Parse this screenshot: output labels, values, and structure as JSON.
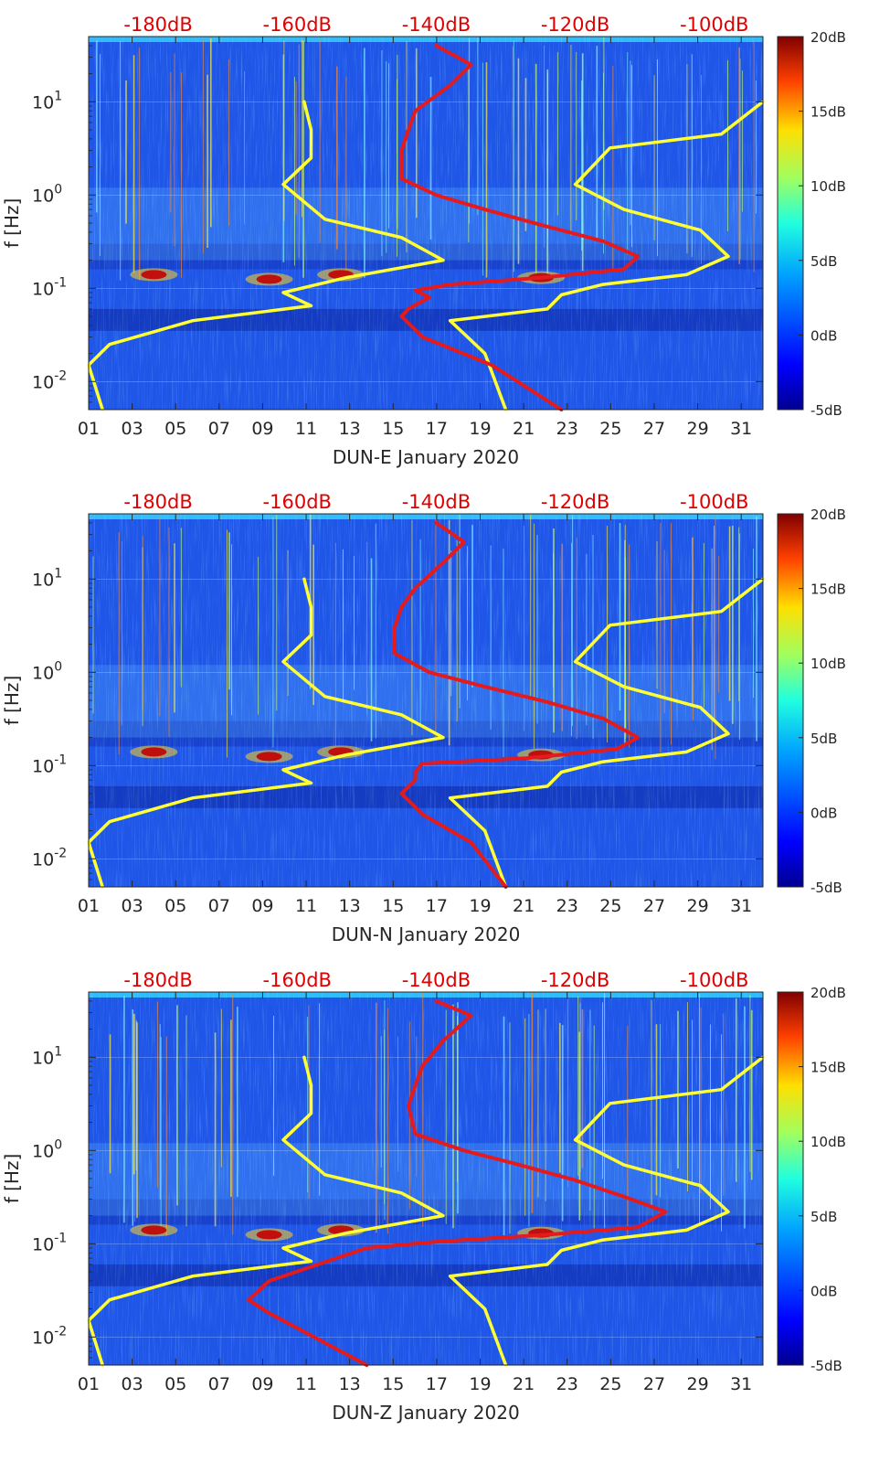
{
  "colors": {
    "background": "#1f56e8",
    "white_line": "#ffffff",
    "yellow_curve": "#ffff33",
    "red_curve": "#e41a1c",
    "top_axis_text": "#e00000",
    "text": "#262626"
  },
  "chart_data": [
    {
      "type": "heatmap",
      "id": "panel-e",
      "xlabel": "DUN-E January 2020",
      "ylabel": "f [Hz]",
      "x_ticks": [
        "01",
        "03",
        "05",
        "07",
        "09",
        "11",
        "13",
        "15",
        "17",
        "19",
        "21",
        "23",
        "25",
        "27",
        "29",
        "31"
      ],
      "x_tick_values": [
        1,
        3,
        5,
        7,
        9,
        11,
        13,
        15,
        17,
        19,
        21,
        23,
        25,
        27,
        29,
        31
      ],
      "xlim": [
        1,
        32
      ],
      "y_scale": "log",
      "ylim": [
        0.005,
        50
      ],
      "y_ticks": [
        {
          "value": 10,
          "base": "10",
          "exp": "1"
        },
        {
          "value": 1,
          "base": "10",
          "exp": "0"
        },
        {
          "value": 0.1,
          "base": "10",
          "exp": "-1"
        },
        {
          "value": 0.01,
          "base": "10",
          "exp": "-2"
        }
      ],
      "top_ticks": [
        "-180dB",
        "-160dB",
        "-140dB",
        "-120dB",
        "-100dB"
      ],
      "top_tick_values": [
        -180,
        -160,
        -140,
        -120,
        -100
      ],
      "top_xlim": [
        -190,
        -93
      ],
      "colorbar": {
        "labels": [
          "20dB",
          "15dB",
          "10dB",
          "5dB",
          "0dB",
          "-5dB"
        ],
        "values": [
          20,
          15,
          10,
          5,
          0,
          -5
        ],
        "range": [
          -5,
          20
        ]
      },
      "series": [
        {
          "name": "yellow-low-noise-model",
          "axis": "top",
          "points": [
            [
              -159,
              10
            ],
            [
              -158,
              5
            ],
            [
              -158,
              2.5
            ],
            [
              -162,
              1.3
            ],
            [
              -156,
              0.55
            ],
            [
              -145,
              0.35
            ],
            [
              -139,
              0.2
            ],
            [
              -153,
              0.13
            ],
            [
              -162,
              0.09
            ],
            [
              -158,
              0.065
            ],
            [
              -175,
              0.045
            ],
            [
              -187,
              0.025
            ],
            [
              -190,
              0.015
            ],
            [
              -188,
              0.005
            ]
          ]
        },
        {
          "name": "yellow-high-noise-model",
          "axis": "top",
          "points": [
            [
              -93,
              10
            ],
            [
              -99,
              4.5
            ],
            [
              -115,
              3.2
            ],
            [
              -120,
              1.3
            ],
            [
              -113,
              0.7
            ],
            [
              -102,
              0.42
            ],
            [
              -98,
              0.22
            ],
            [
              -104,
              0.14
            ],
            [
              -116,
              0.11
            ],
            [
              -122,
              0.085
            ],
            [
              -124,
              0.06
            ],
            [
              -138,
              0.045
            ],
            [
              -133,
              0.02
            ],
            [
              -130,
              0.005
            ]
          ]
        },
        {
          "name": "red-psd-dun-e",
          "axis": "top",
          "points": [
            [
              -140,
              40
            ],
            [
              -135,
              25
            ],
            [
              -138,
              15
            ],
            [
              -143,
              8
            ],
            [
              -144,
              5
            ],
            [
              -145,
              3
            ],
            [
              -145,
              1.5
            ],
            [
              -140,
              1.0
            ],
            [
              -133,
              0.7
            ],
            [
              -125,
              0.48
            ],
            [
              -116,
              0.32
            ],
            [
              -111,
              0.22
            ],
            [
              -113,
              0.16
            ],
            [
              -125,
              0.13
            ],
            [
              -138,
              0.11
            ],
            [
              -143,
              0.095
            ],
            [
              -141,
              0.08
            ],
            [
              -144,
              0.06
            ],
            [
              -145,
              0.05
            ],
            [
              -142,
              0.03
            ],
            [
              -132,
              0.015
            ],
            [
              -122,
              0.005
            ]
          ]
        }
      ]
    },
    {
      "type": "heatmap",
      "id": "panel-n",
      "xlabel": "DUN-N January 2020",
      "ylabel": "f [Hz]",
      "x_ticks": [
        "01",
        "03",
        "05",
        "07",
        "09",
        "11",
        "13",
        "15",
        "17",
        "19",
        "21",
        "23",
        "25",
        "27",
        "29",
        "31"
      ],
      "x_tick_values": [
        1,
        3,
        5,
        7,
        9,
        11,
        13,
        15,
        17,
        19,
        21,
        23,
        25,
        27,
        29,
        31
      ],
      "xlim": [
        1,
        32
      ],
      "y_scale": "log",
      "ylim": [
        0.005,
        50
      ],
      "y_ticks": [
        {
          "value": 10,
          "base": "10",
          "exp": "1"
        },
        {
          "value": 1,
          "base": "10",
          "exp": "0"
        },
        {
          "value": 0.1,
          "base": "10",
          "exp": "-1"
        },
        {
          "value": 0.01,
          "base": "10",
          "exp": "-2"
        }
      ],
      "top_ticks": [
        "-180dB",
        "-160dB",
        "-140dB",
        "-120dB",
        "-100dB"
      ],
      "top_tick_values": [
        -180,
        -160,
        -140,
        -120,
        -100
      ],
      "top_xlim": [
        -190,
        -93
      ],
      "colorbar": {
        "labels": [
          "20dB",
          "15dB",
          "10dB",
          "5dB",
          "0dB",
          "-5dB"
        ],
        "values": [
          20,
          15,
          10,
          5,
          0,
          -5
        ],
        "range": [
          -5,
          20
        ]
      },
      "series": [
        {
          "name": "yellow-low-noise-model",
          "axis": "top",
          "points": [
            [
              -159,
              10
            ],
            [
              -158,
              5
            ],
            [
              -158,
              2.5
            ],
            [
              -162,
              1.3
            ],
            [
              -156,
              0.55
            ],
            [
              -145,
              0.35
            ],
            [
              -139,
              0.2
            ],
            [
              -153,
              0.13
            ],
            [
              -162,
              0.09
            ],
            [
              -158,
              0.065
            ],
            [
              -175,
              0.045
            ],
            [
              -187,
              0.025
            ],
            [
              -190,
              0.015
            ],
            [
              -188,
              0.005
            ]
          ]
        },
        {
          "name": "yellow-high-noise-model",
          "axis": "top",
          "points": [
            [
              -93,
              10
            ],
            [
              -99,
              4.5
            ],
            [
              -115,
              3.2
            ],
            [
              -120,
              1.3
            ],
            [
              -113,
              0.7
            ],
            [
              -102,
              0.42
            ],
            [
              -98,
              0.22
            ],
            [
              -104,
              0.14
            ],
            [
              -116,
              0.11
            ],
            [
              -122,
              0.085
            ],
            [
              -124,
              0.06
            ],
            [
              -138,
              0.045
            ],
            [
              -133,
              0.02
            ],
            [
              -130,
              0.005
            ]
          ]
        },
        {
          "name": "red-psd-dun-n",
          "axis": "top",
          "points": [
            [
              -140,
              40
            ],
            [
              -136,
              25
            ],
            [
              -139,
              15
            ],
            [
              -143,
              8
            ],
            [
              -145,
              5
            ],
            [
              -146,
              3
            ],
            [
              -146,
              1.6
            ],
            [
              -141,
              1.0
            ],
            [
              -133,
              0.7
            ],
            [
              -124,
              0.48
            ],
            [
              -116,
              0.32
            ],
            [
              -111,
              0.2
            ],
            [
              -114,
              0.15
            ],
            [
              -127,
              0.12
            ],
            [
              -142,
              0.105
            ],
            [
              -143,
              0.085
            ],
            [
              -143,
              0.07
            ],
            [
              -145,
              0.05
            ],
            [
              -142,
              0.03
            ],
            [
              -135,
              0.015
            ],
            [
              -130,
              0.005
            ]
          ]
        }
      ]
    },
    {
      "type": "heatmap",
      "id": "panel-z",
      "xlabel": "DUN-Z January 2020",
      "ylabel": "f [Hz]",
      "x_ticks": [
        "01",
        "03",
        "05",
        "07",
        "09",
        "11",
        "13",
        "15",
        "17",
        "19",
        "21",
        "23",
        "25",
        "27",
        "29",
        "31"
      ],
      "x_tick_values": [
        1,
        3,
        5,
        7,
        9,
        11,
        13,
        15,
        17,
        19,
        21,
        23,
        25,
        27,
        29,
        31
      ],
      "xlim": [
        1,
        32
      ],
      "y_scale": "log",
      "ylim": [
        0.005,
        50
      ],
      "y_ticks": [
        {
          "value": 10,
          "base": "10",
          "exp": "1"
        },
        {
          "value": 1,
          "base": "10",
          "exp": "0"
        },
        {
          "value": 0.1,
          "base": "10",
          "exp": "-1"
        },
        {
          "value": 0.01,
          "base": "10",
          "exp": "-2"
        }
      ],
      "top_ticks": [
        "-180dB",
        "-160dB",
        "-140dB",
        "-120dB",
        "-100dB"
      ],
      "top_tick_values": [
        -180,
        -160,
        -140,
        -120,
        -100
      ],
      "top_xlim": [
        -190,
        -93
      ],
      "colorbar": {
        "labels": [
          "20dB",
          "15dB",
          "10dB",
          "5dB",
          "0dB",
          "-5dB"
        ],
        "values": [
          20,
          15,
          10,
          5,
          0,
          -5
        ],
        "range": [
          -5,
          20
        ]
      },
      "series": [
        {
          "name": "yellow-low-noise-model",
          "axis": "top",
          "points": [
            [
              -159,
              10
            ],
            [
              -158,
              5
            ],
            [
              -158,
              2.5
            ],
            [
              -162,
              1.3
            ],
            [
              -156,
              0.55
            ],
            [
              -145,
              0.35
            ],
            [
              -139,
              0.2
            ],
            [
              -153,
              0.13
            ],
            [
              -162,
              0.09
            ],
            [
              -158,
              0.065
            ],
            [
              -175,
              0.045
            ],
            [
              -187,
              0.025
            ],
            [
              -190,
              0.015
            ],
            [
              -188,
              0.005
            ]
          ]
        },
        {
          "name": "yellow-high-noise-model",
          "axis": "top",
          "points": [
            [
              -93,
              10
            ],
            [
              -99,
              4.5
            ],
            [
              -115,
              3.2
            ],
            [
              -120,
              1.3
            ],
            [
              -113,
              0.7
            ],
            [
              -102,
              0.42
            ],
            [
              -98,
              0.22
            ],
            [
              -104,
              0.14
            ],
            [
              -116,
              0.11
            ],
            [
              -122,
              0.085
            ],
            [
              -124,
              0.06
            ],
            [
              -138,
              0.045
            ],
            [
              -133,
              0.02
            ],
            [
              -130,
              0.005
            ]
          ]
        },
        {
          "name": "red-psd-dun-z",
          "axis": "top",
          "points": [
            [
              -140,
              40
            ],
            [
              -135,
              28
            ],
            [
              -139,
              15
            ],
            [
              -142,
              8
            ],
            [
              -143,
              5
            ],
            [
              -144,
              3
            ],
            [
              -143,
              1.5
            ],
            [
              -136,
              1.0
            ],
            [
              -128,
              0.7
            ],
            [
              -120,
              0.48
            ],
            [
              -113,
              0.32
            ],
            [
              -107,
              0.22
            ],
            [
              -111,
              0.15
            ],
            [
              -124,
              0.125
            ],
            [
              -140,
              0.105
            ],
            [
              -150,
              0.09
            ],
            [
              -157,
              0.06
            ],
            [
              -164,
              0.04
            ],
            [
              -167,
              0.025
            ],
            [
              -164,
              0.018
            ],
            [
              -150,
              0.005
            ]
          ]
        }
      ]
    }
  ]
}
